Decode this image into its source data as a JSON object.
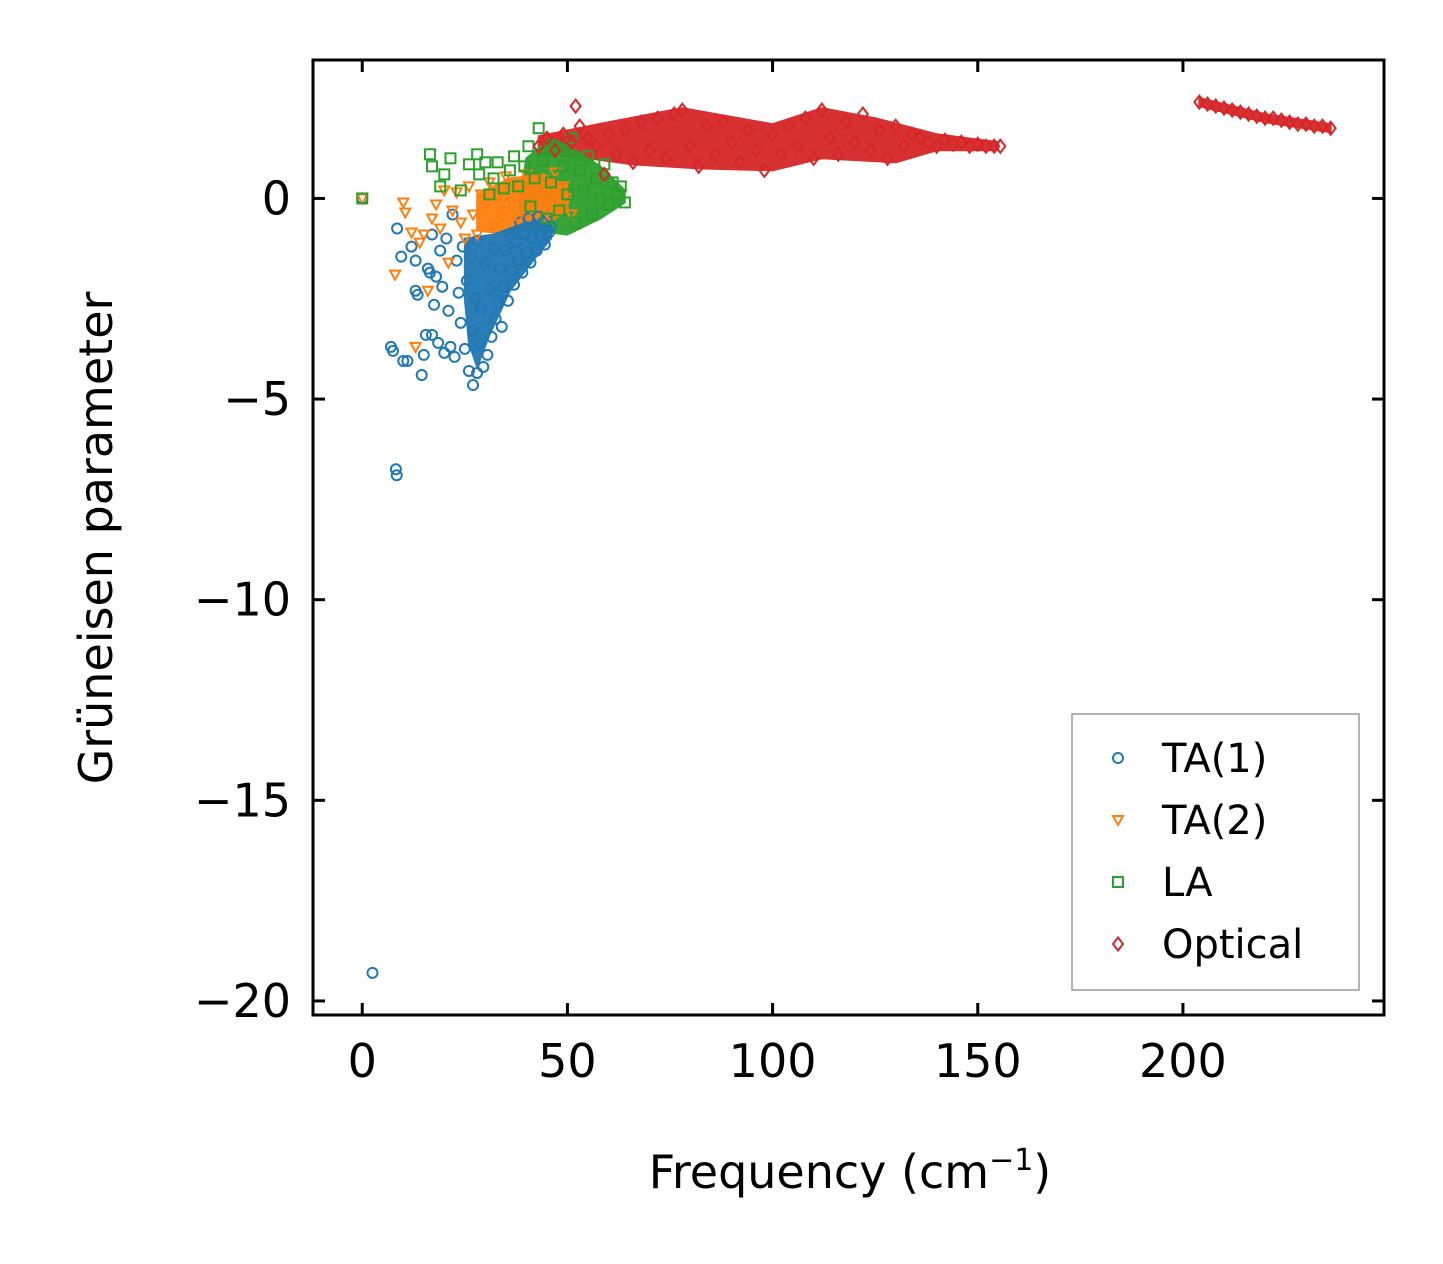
{
  "chart_data": {
    "type": "scatter",
    "title": "",
    "xlabel": "Frequency (cm",
    "xlabel_superscript": "−1",
    "xlabel_suffix": ")",
    "ylabel": "Grüneisen parameter",
    "xlim": [
      -12,
      249
    ],
    "ylim": [
      -20.35,
      3.45
    ],
    "xticks": [
      0,
      50,
      100,
      150,
      200
    ],
    "xtick_labels": [
      "0",
      "50",
      "100",
      "150",
      "200"
    ],
    "yticks": [
      0,
      -5,
      -10,
      -15,
      -20
    ],
    "ytick_labels": [
      "0",
      "−5",
      "−10",
      "−15",
      "−20"
    ],
    "grid": false,
    "legend_position": "bottom-right",
    "series": [
      {
        "name": "TA(1)",
        "marker": "circle",
        "color": "#1f77b4",
        "points": [
          [
            0.0,
            0.0
          ],
          [
            2.5,
            -19.3
          ],
          [
            7.0,
            -3.7
          ],
          [
            7.5,
            -3.8
          ],
          [
            8.2,
            -6.75
          ],
          [
            8.4,
            -6.9
          ],
          [
            8.5,
            -0.75
          ],
          [
            9.5,
            -1.45
          ],
          [
            10.0,
            -4.05
          ],
          [
            11.0,
            -4.05
          ],
          [
            12.0,
            -1.2
          ],
          [
            13.0,
            -1.55
          ],
          [
            13.0,
            -2.3
          ],
          [
            13.5,
            -2.4
          ],
          [
            14.5,
            -4.4
          ],
          [
            15.0,
            -3.9
          ],
          [
            15.5,
            -3.4
          ],
          [
            16.0,
            -1.75
          ],
          [
            16.5,
            -1.85
          ],
          [
            17.0,
            -0.9
          ],
          [
            17.0,
            -3.4
          ],
          [
            17.5,
            -2.65
          ],
          [
            18.0,
            -1.95
          ],
          [
            18.5,
            -3.6
          ],
          [
            19.0,
            -1.3
          ],
          [
            19.5,
            -2.2
          ],
          [
            20.0,
            -3.85
          ],
          [
            20.5,
            -1.0
          ],
          [
            21.0,
            -2.8
          ],
          [
            21.5,
            -3.7
          ],
          [
            22.0,
            -0.4
          ],
          [
            22.5,
            -3.95
          ],
          [
            23.0,
            -1.55
          ],
          [
            23.5,
            -2.35
          ],
          [
            24.0,
            -3.1
          ],
          [
            24.5,
            -1.2
          ],
          [
            25.0,
            -3.75
          ],
          [
            25.5,
            -2.05
          ],
          [
            26.0,
            -4.3
          ],
          [
            26.5,
            -1.45
          ],
          [
            27.0,
            -4.65
          ],
          [
            27.0,
            -3.3
          ],
          [
            27.5,
            -2.5
          ],
          [
            28.0,
            -4.35
          ],
          [
            28.0,
            -1.05
          ],
          [
            28.5,
            -3.6
          ],
          [
            29.0,
            -2.75
          ],
          [
            29.5,
            -4.2
          ],
          [
            30.0,
            -1.6
          ],
          [
            30.5,
            -3.9
          ],
          [
            31.0,
            -2.25
          ],
          [
            31.5,
            -3.45
          ],
          [
            32.0,
            -1.25
          ],
          [
            32.5,
            -3.0
          ],
          [
            33.0,
            -2.6
          ],
          [
            33.5,
            -1.75
          ],
          [
            34.0,
            -3.2
          ],
          [
            34.5,
            -2.2
          ],
          [
            35.0,
            -1.3
          ],
          [
            35.5,
            -2.55
          ],
          [
            36.0,
            -0.9
          ],
          [
            36.5,
            -1.8
          ],
          [
            37.0,
            -2.15
          ],
          [
            37.5,
            -1.1
          ],
          [
            38.0,
            -1.55
          ],
          [
            38.5,
            -0.6
          ],
          [
            39.0,
            -1.85
          ],
          [
            39.5,
            -0.9
          ],
          [
            40.0,
            -1.35
          ],
          [
            40.5,
            -0.5
          ],
          [
            41.0,
            -1.6
          ],
          [
            41.5,
            -1.0
          ],
          [
            42.0,
            -0.7
          ],
          [
            42.5,
            -1.3
          ],
          [
            43.0,
            -0.45
          ],
          [
            43.5,
            -0.95
          ],
          [
            44.0,
            -0.6
          ],
          [
            44.5,
            -1.15
          ],
          [
            45.0,
            -0.55
          ],
          [
            45.5,
            -0.85
          ],
          [
            46.0,
            -0.7
          ]
        ]
      },
      {
        "name": "TA(2)",
        "marker": "triangle-down",
        "color": "#ff7f0e",
        "points": [
          [
            0.0,
            0.0
          ],
          [
            8.0,
            -1.9
          ],
          [
            10.0,
            -0.1
          ],
          [
            10.5,
            -0.35
          ],
          [
            12.0,
            -0.85
          ],
          [
            13.0,
            -3.7
          ],
          [
            14.0,
            -1.1
          ],
          [
            15.0,
            -0.9
          ],
          [
            16.0,
            -2.3
          ],
          [
            17.0,
            -0.5
          ],
          [
            18.0,
            -0.15
          ],
          [
            19.0,
            -0.75
          ],
          [
            20.0,
            0.2
          ],
          [
            21.0,
            -1.6
          ],
          [
            22.0,
            -0.3
          ],
          [
            23.0,
            0.15
          ],
          [
            24.0,
            -0.6
          ],
          [
            25.0,
            -1.0
          ],
          [
            26.0,
            0.3
          ],
          [
            27.0,
            -0.4
          ],
          [
            28.0,
            -0.9
          ],
          [
            29.0,
            0.1
          ],
          [
            30.0,
            -0.2
          ],
          [
            31.0,
            0.4
          ],
          [
            32.0,
            -0.7
          ],
          [
            33.0,
            0.05
          ],
          [
            34.0,
            -0.45
          ],
          [
            35.0,
            0.55
          ],
          [
            36.0,
            -0.1
          ],
          [
            37.0,
            0.35
          ],
          [
            38.0,
            -0.5
          ],
          [
            39.0,
            0.1
          ],
          [
            40.0,
            0.6
          ],
          [
            41.0,
            -0.25
          ],
          [
            42.0,
            0.3
          ],
          [
            43.0,
            -0.1
          ],
          [
            44.0,
            0.45
          ],
          [
            45.0,
            -0.35
          ],
          [
            46.0,
            0.2
          ],
          [
            47.0,
            0.65
          ],
          [
            48.0,
            -0.2
          ],
          [
            49.0,
            0.3
          ],
          [
            50.0,
            0.0
          ],
          [
            51.0,
            -0.4
          ]
        ]
      },
      {
        "name": "LA",
        "marker": "square",
        "color": "#2ca02c",
        "points": [
          [
            0.0,
            0.0
          ],
          [
            16.5,
            1.1
          ],
          [
            17.0,
            0.8
          ],
          [
            19.0,
            0.3
          ],
          [
            20.0,
            0.6
          ],
          [
            21.5,
            1.0
          ],
          [
            24.0,
            0.2
          ],
          [
            26.0,
            0.85
          ],
          [
            28.0,
            1.1
          ],
          [
            28.5,
            0.6
          ],
          [
            30.0,
            0.9
          ],
          [
            31.0,
            0.1
          ],
          [
            32.0,
            0.5
          ],
          [
            33.0,
            0.9
          ],
          [
            34.5,
            0.25
          ],
          [
            36.0,
            0.7
          ],
          [
            37.0,
            1.05
          ],
          [
            38.0,
            0.3
          ],
          [
            39.5,
            0.8
          ],
          [
            40.5,
            1.3
          ],
          [
            41.0,
            -0.2
          ],
          [
            42.0,
            0.5
          ],
          [
            43.0,
            1.75
          ],
          [
            44.0,
            0.95
          ],
          [
            45.0,
            -0.5
          ],
          [
            46.0,
            0.4
          ],
          [
            47.0,
            1.2
          ],
          [
            48.0,
            -0.3
          ],
          [
            49.0,
            0.8
          ],
          [
            50.0,
            0.1
          ],
          [
            51.0,
            1.5
          ],
          [
            52.0,
            -0.6
          ],
          [
            53.0,
            0.7
          ],
          [
            54.0,
            0.2
          ],
          [
            55.0,
            1.05
          ],
          [
            56.0,
            -0.4
          ],
          [
            57.0,
            0.5
          ],
          [
            58.0,
            0.0
          ],
          [
            59.0,
            0.85
          ],
          [
            60.0,
            -0.15
          ],
          [
            61.0,
            0.4
          ],
          [
            62.0,
            0.1
          ],
          [
            63.0,
            0.3
          ],
          [
            64.0,
            -0.1
          ]
        ]
      },
      {
        "name": "Optical",
        "marker": "diamond",
        "color": "#d62728",
        "points": [
          [
            43.0,
            1.3
          ],
          [
            45.0,
            1.5
          ],
          [
            47.0,
            1.2
          ],
          [
            49.0,
            1.6
          ],
          [
            51.0,
            1.4
          ],
          [
            52.0,
            2.3
          ],
          [
            53.0,
            1.8
          ],
          [
            55.0,
            1.5
          ],
          [
            57.0,
            1.3
          ],
          [
            59.0,
            0.6
          ],
          [
            60.0,
            1.6
          ],
          [
            62.0,
            1.1
          ],
          [
            64.0,
            1.7
          ],
          [
            66.0,
            0.9
          ],
          [
            68.0,
            1.9
          ],
          [
            70.0,
            1.2
          ],
          [
            72.0,
            2.0
          ],
          [
            74.0,
            1.0
          ],
          [
            76.0,
            2.1
          ],
          [
            78.0,
            2.2
          ],
          [
            80.0,
            1.3
          ],
          [
            82.0,
            0.8
          ],
          [
            84.0,
            1.8
          ],
          [
            86.0,
            1.1
          ],
          [
            88.0,
            1.9
          ],
          [
            90.0,
            1.4
          ],
          [
            92.0,
            0.9
          ],
          [
            94.0,
            1.7
          ],
          [
            96.0,
            1.2
          ],
          [
            98.0,
            0.7
          ],
          [
            100.0,
            1.6
          ],
          [
            102.0,
            1.1
          ],
          [
            104.0,
            1.8
          ],
          [
            106.0,
            1.3
          ],
          [
            108.0,
            2.0
          ],
          [
            110.0,
            1.0
          ],
          [
            112.0,
            2.2
          ],
          [
            114.0,
            1.5
          ],
          [
            116.0,
            1.1
          ],
          [
            118.0,
            1.9
          ],
          [
            120.0,
            1.4
          ],
          [
            122.0,
            2.1
          ],
          [
            124.0,
            1.2
          ],
          [
            126.0,
            1.7
          ],
          [
            128.0,
            1.0
          ],
          [
            130.0,
            1.8
          ],
          [
            132.0,
            1.3
          ],
          [
            134.0,
            1.6
          ],
          [
            136.0,
            1.5
          ],
          [
            138.0,
            1.4
          ],
          [
            140.0,
            1.3
          ],
          [
            142.0,
            1.45
          ],
          [
            144.0,
            1.35
          ],
          [
            146.0,
            1.4
          ],
          [
            148.0,
            1.3
          ],
          [
            150.0,
            1.35
          ],
          [
            152.0,
            1.3
          ],
          [
            154.0,
            1.3
          ],
          [
            155.5,
            1.3
          ],
          [
            204.0,
            2.4
          ],
          [
            206.0,
            2.35
          ],
          [
            208.0,
            2.3
          ],
          [
            210.0,
            2.25
          ],
          [
            212.0,
            2.2
          ],
          [
            214.0,
            2.15
          ],
          [
            216.0,
            2.1
          ],
          [
            218.0,
            2.05
          ],
          [
            220.0,
            2.0
          ],
          [
            222.0,
            2.0
          ],
          [
            224.0,
            1.95
          ],
          [
            226.0,
            1.9
          ],
          [
            228.0,
            1.85
          ],
          [
            230.0,
            1.85
          ],
          [
            232.0,
            1.8
          ],
          [
            234.0,
            1.8
          ],
          [
            236.0,
            1.75
          ]
        ]
      }
    ]
  }
}
